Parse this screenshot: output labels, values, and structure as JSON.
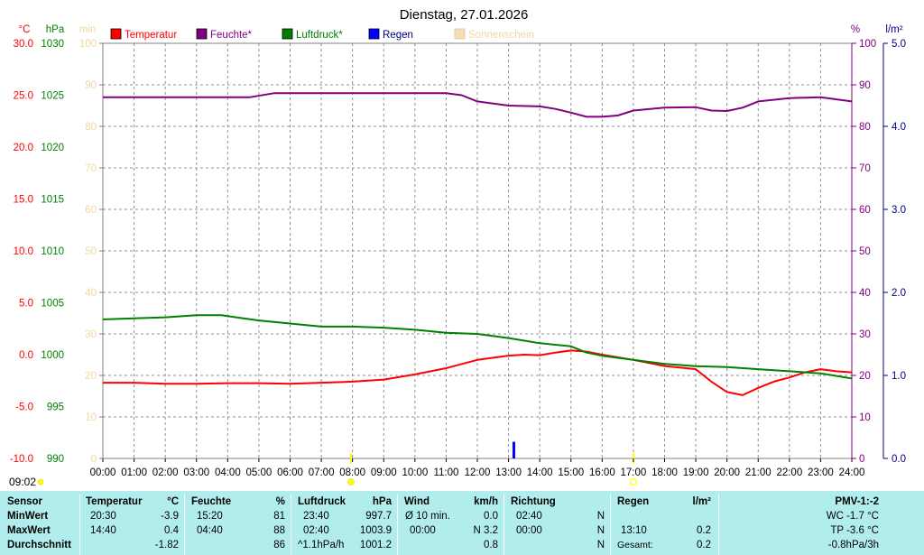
{
  "title": "Dienstag, 27.01.2026",
  "chart_data": {
    "type": "line",
    "title": "Dienstag, 27.01.2026",
    "x": {
      "ticks": [
        "00:00",
        "01:00",
        "02:00",
        "03:00",
        "04:00",
        "05:00",
        "06:00",
        "07:00",
        "08:00",
        "09:00",
        "10:00",
        "11:00",
        "12:00",
        "13:00",
        "14:00",
        "15:00",
        "16:00",
        "17:00",
        "18:00",
        "19:00",
        "20:00",
        "21:00",
        "22:00",
        "23:00",
        "24:00"
      ],
      "range_hours": [
        0,
        24
      ]
    },
    "axes": {
      "temp": {
        "unit": "°C",
        "min": -10,
        "max": 30,
        "ticks": [
          "30.0",
          "25.0",
          "20.0",
          "15.0",
          "10.0",
          "5.0",
          "0.0",
          "-5.0",
          "-10.0"
        ],
        "color": "#ff0000"
      },
      "pressure": {
        "unit": "hPa",
        "min": 990,
        "max": 1030,
        "ticks": [
          "1030",
          "1025",
          "1020",
          "1015",
          "1010",
          "1005",
          "1000",
          "995",
          "990"
        ],
        "color": "#008000"
      },
      "sun": {
        "unit": "min",
        "min": 0,
        "max": 100,
        "ticks": [
          "100",
          "90",
          "80",
          "70",
          "60",
          "50",
          "40",
          "30",
          "20",
          "10",
          "0"
        ],
        "color": "#f0d8a0"
      },
      "humidity": {
        "unit": "%",
        "min": 0,
        "max": 100,
        "ticks": [
          "100",
          "90",
          "80",
          "70",
          "60",
          "50",
          "40",
          "30",
          "20",
          "10",
          "0"
        ],
        "color": "#800080"
      },
      "rain": {
        "unit": "l/m²",
        "min": 0,
        "max": 5,
        "ticks": [
          "5.0",
          "4.0",
          "3.0",
          "2.0",
          "1.0",
          "0.0"
        ],
        "color": "#000080"
      }
    },
    "grid": true,
    "legend_position": "top",
    "series": [
      {
        "name": "Temperatur",
        "axis": "temp",
        "color": "#ff0000",
        "type": "line",
        "points": [
          [
            0,
            -2.7
          ],
          [
            1,
            -2.7
          ],
          [
            2,
            -2.8
          ],
          [
            3,
            -2.8
          ],
          [
            4,
            -2.75
          ],
          [
            5,
            -2.75
          ],
          [
            6,
            -2.8
          ],
          [
            7,
            -2.7
          ],
          [
            8,
            -2.6
          ],
          [
            9,
            -2.4
          ],
          [
            10,
            -1.9
          ],
          [
            11,
            -1.3
          ],
          [
            12,
            -0.5
          ],
          [
            13,
            -0.1
          ],
          [
            13.5,
            0.0
          ],
          [
            14,
            -0.05
          ],
          [
            14.5,
            0.2
          ],
          [
            15,
            0.4
          ],
          [
            15.5,
            0.3
          ],
          [
            16,
            0.0
          ],
          [
            17,
            -0.5
          ],
          [
            18,
            -1.1
          ],
          [
            19,
            -1.4
          ],
          [
            19.5,
            -2.6
          ],
          [
            20,
            -3.6
          ],
          [
            20.5,
            -3.9
          ],
          [
            21,
            -3.2
          ],
          [
            21.5,
            -2.6
          ],
          [
            22,
            -2.2
          ],
          [
            22.5,
            -1.7
          ],
          [
            23,
            -1.4
          ],
          [
            23.5,
            -1.6
          ],
          [
            24,
            -1.7
          ]
        ]
      },
      {
        "name": "Feuchte*",
        "axis": "humidity",
        "color": "#800080",
        "type": "line",
        "points": [
          [
            0,
            87
          ],
          [
            1,
            87
          ],
          [
            2,
            87
          ],
          [
            3,
            87
          ],
          [
            4,
            87
          ],
          [
            4.7,
            87
          ],
          [
            5.5,
            88
          ],
          [
            6.5,
            88
          ],
          [
            8,
            88
          ],
          [
            9,
            88
          ],
          [
            10,
            88
          ],
          [
            11,
            88
          ],
          [
            11.5,
            87.5
          ],
          [
            12,
            86
          ],
          [
            13,
            85
          ],
          [
            14,
            84.8
          ],
          [
            14.5,
            84.2
          ],
          [
            15,
            83.3
          ],
          [
            15.5,
            82.3
          ],
          [
            16,
            82.3
          ],
          [
            16.5,
            82.6
          ],
          [
            17,
            83.8
          ],
          [
            18,
            84.5
          ],
          [
            19,
            84.6
          ],
          [
            19.5,
            83.8
          ],
          [
            20,
            83.7
          ],
          [
            20.5,
            84.5
          ],
          [
            21,
            86
          ],
          [
            22,
            86.8
          ],
          [
            23,
            87
          ],
          [
            24,
            86
          ]
        ]
      },
      {
        "name": "Luftdruck*",
        "axis": "pressure",
        "color": "#008000",
        "type": "line",
        "points": [
          [
            0,
            1003.4
          ],
          [
            1,
            1003.5
          ],
          [
            2,
            1003.6
          ],
          [
            3,
            1003.8
          ],
          [
            3.8,
            1003.8
          ],
          [
            4.5,
            1003.5
          ],
          [
            5,
            1003.3
          ],
          [
            6,
            1003.0
          ],
          [
            7,
            1002.7
          ],
          [
            8,
            1002.7
          ],
          [
            9,
            1002.6
          ],
          [
            10,
            1002.4
          ],
          [
            11,
            1002.1
          ],
          [
            12,
            1002.0
          ],
          [
            13,
            1001.6
          ],
          [
            14,
            1001.1
          ],
          [
            15,
            1000.8
          ],
          [
            15.5,
            1000.2
          ],
          [
            16,
            999.9
          ],
          [
            17,
            999.5
          ],
          [
            18,
            999.1
          ],
          [
            19,
            998.9
          ],
          [
            20,
            998.8
          ],
          [
            21,
            998.6
          ],
          [
            22,
            998.4
          ],
          [
            23,
            998.2
          ],
          [
            24,
            997.7
          ]
        ]
      },
      {
        "name": "Regen",
        "axis": "rain",
        "color": "#0000ff",
        "type": "bar",
        "points": [
          [
            13.17,
            0.2
          ]
        ]
      },
      {
        "name": "Sonnenschein",
        "axis": "sun",
        "color": "#f5deb3",
        "type": "line",
        "points": []
      }
    ],
    "markers": [
      {
        "hour": 7.95,
        "color": "#ffff00",
        "style": "sunrise"
      },
      {
        "hour": 17.0,
        "color": "#ffff00",
        "style": "sunset"
      }
    ]
  },
  "footer": {
    "time": "09:02"
  },
  "table": {
    "headers": {
      "sensor": "Sensor",
      "temp": "Temperatur",
      "temp_unit": "°C",
      "hum": "Feuchte",
      "hum_unit": "%",
      "press": "Luftdruck",
      "press_unit": "hPa",
      "wind": "Wind",
      "wind_unit": "km/h",
      "dir": "Richtung",
      "rain": "Regen",
      "rain_unit": "l/m²",
      "pmv": "PMV-1:-2"
    },
    "rows": {
      "min": {
        "label": "MinWert",
        "temp_time": "20:30",
        "temp_val": "-3.9",
        "hum_time": "15:20",
        "hum_val": "81",
        "press_time": "23:40",
        "press_val": "997.7",
        "wind_label": "Ø 10 min.",
        "wind_val": "0.0",
        "dir_time": "02:40",
        "dir_val": "N",
        "pmv_val": "WC -1.7 °C"
      },
      "max": {
        "label": "MaxWert",
        "temp_time": "14:40",
        "temp_val": "0.4",
        "hum_time": "04:40",
        "hum_val": "88",
        "press_time": "02:40",
        "press_val": "1003.9",
        "wind_time": "00:00",
        "wind_val": "N 3.2",
        "dir_time": "00:00",
        "dir_val": "N",
        "rain_time": "13:10",
        "rain_val": "0.2",
        "pmv_val": "TP -3.6 °C"
      },
      "avg": {
        "label": "Durchschnitt",
        "temp_val": "-1.82",
        "hum_val": "86",
        "press_trend": "^1.1hPa/h",
        "press_val": "1001.2",
        "wind_val": "0.8",
        "dir_val": "N",
        "rain_label": "Gesamt:",
        "rain_val": "0.2",
        "pmv_val": "-0.8hPa/3h"
      }
    }
  }
}
